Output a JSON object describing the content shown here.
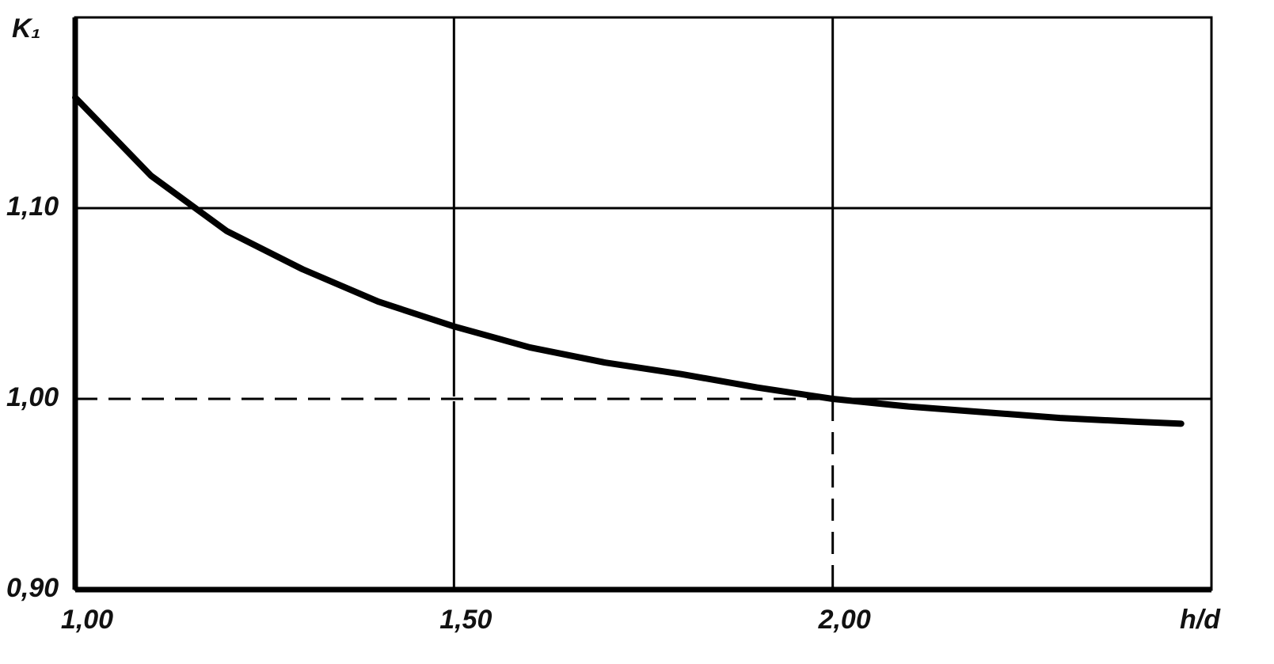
{
  "chart_data": {
    "type": "line",
    "y_label": "K₁",
    "x_label": "h/d",
    "x": [
      1.0,
      1.1,
      1.2,
      1.3,
      1.4,
      1.5,
      1.6,
      1.7,
      1.8,
      1.9,
      2.0,
      2.1,
      2.2,
      2.3,
      2.4,
      2.46
    ],
    "series": [
      {
        "name": "K₁",
        "color": "#000000",
        "values": [
          1.158,
          1.117,
          1.088,
          1.068,
          1.051,
          1.038,
          1.027,
          1.019,
          1.013,
          1.006,
          1.0,
          0.996,
          0.993,
          0.99,
          0.988,
          0.987
        ]
      }
    ],
    "xlim": [
      1.0,
      2.5
    ],
    "ylim": [
      0.9,
      1.2
    ],
    "xticks": [
      {
        "value": 1.0,
        "label": "1,00"
      },
      {
        "value": 1.5,
        "label": "1,50"
      },
      {
        "value": 2.0,
        "label": "2,00"
      }
    ],
    "yticks": [
      {
        "value": 0.9,
        "label": "0,90"
      },
      {
        "value": 1.0,
        "label": "1,00"
      },
      {
        "value": 1.1,
        "label": "1,10"
      }
    ],
    "reference_point": {
      "x": 2.0,
      "y": 1.0
    },
    "grid": true
  }
}
